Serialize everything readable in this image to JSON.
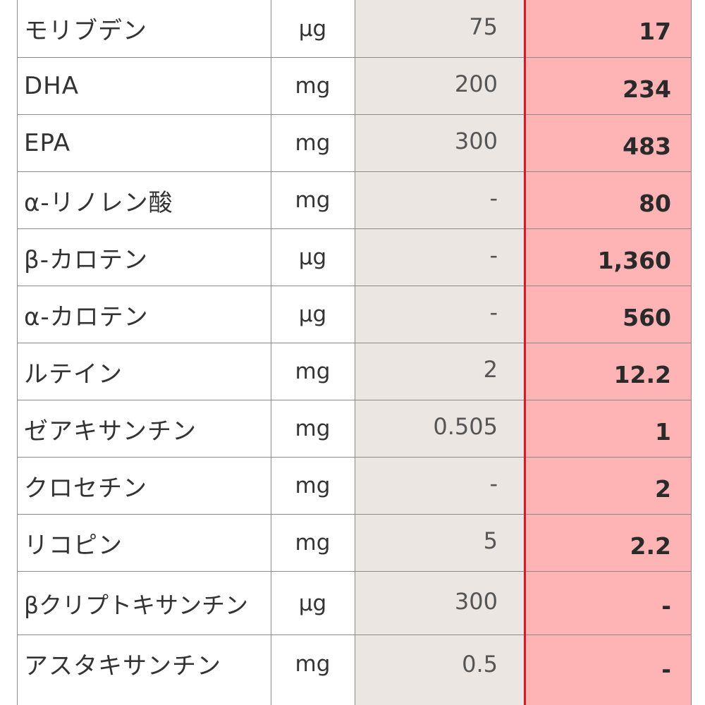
{
  "colors": {
    "reference_column_bg": "#ece6e3",
    "value_column_bg": "#feb3b5",
    "value_column_border": "#e1141f",
    "grid_line": "#8a8a8a",
    "text": "#333333"
  },
  "rows": [
    {
      "name": "モリブデン",
      "unit": "μg",
      "reference": "75",
      "value": "17"
    },
    {
      "name": "DHA",
      "unit": "mg",
      "reference": "200",
      "value": "234"
    },
    {
      "name": "EPA",
      "unit": "mg",
      "reference": "300",
      "value": "483"
    },
    {
      "name": "α-リノレン酸",
      "unit": "mg",
      "reference": "-",
      "value": "80"
    },
    {
      "name": "β-カロテン",
      "unit": "μg",
      "reference": "-",
      "value": "1,360"
    },
    {
      "name": "α-カロテン",
      "unit": "μg",
      "reference": "-",
      "value": "560"
    },
    {
      "name": "ルテイン",
      "unit": "mg",
      "reference": "2",
      "value": "12.2"
    },
    {
      "name": "ゼアキサンチン",
      "unit": "mg",
      "reference": "0.505",
      "value": "1"
    },
    {
      "name": "クロセチン",
      "unit": "mg",
      "reference": "-",
      "value": "2"
    },
    {
      "name": "リコピン",
      "unit": "mg",
      "reference": "5",
      "value": "2.2"
    },
    {
      "name": "βクリプトキサンチン",
      "unit": "μg",
      "reference": "300",
      "value": "-"
    },
    {
      "name": "アスタキサンチン",
      "unit": "mg",
      "reference": "0.5",
      "value": "-"
    }
  ]
}
